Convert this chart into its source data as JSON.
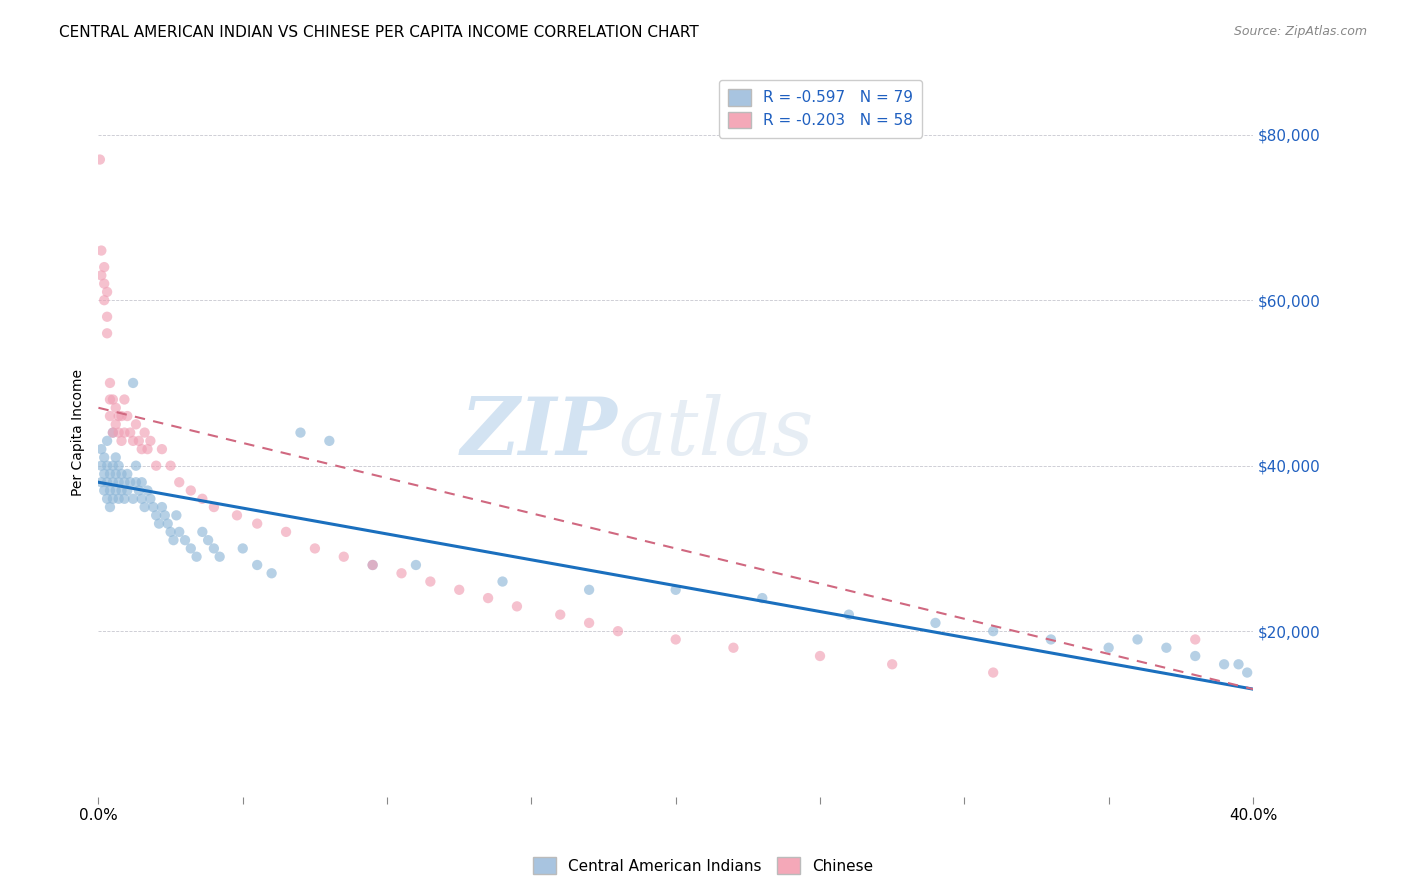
{
  "title": "CENTRAL AMERICAN INDIAN VS CHINESE PER CAPITA INCOME CORRELATION CHART",
  "source": "Source: ZipAtlas.com",
  "ylabel": "Per Capita Income",
  "yticks": [
    0,
    20000,
    40000,
    60000,
    80000
  ],
  "ytick_labels": [
    "",
    "$20,000",
    "$40,000",
    "$60,000",
    "$80,000"
  ],
  "watermark_zip": "ZIP",
  "watermark_atlas": "atlas",
  "legend_entries": [
    {
      "label": "R = -0.597   N = 79",
      "color": "#a8c4e0"
    },
    {
      "label": "R = -0.203   N = 58",
      "color": "#f4a8b8"
    }
  ],
  "legend_bottom": [
    {
      "label": "Central American Indians",
      "color": "#a8c4e0"
    },
    {
      "label": "Chinese",
      "color": "#f4a8b8"
    }
  ],
  "blue_scatter_x": [
    0.001,
    0.001,
    0.001,
    0.002,
    0.002,
    0.002,
    0.003,
    0.003,
    0.003,
    0.003,
    0.004,
    0.004,
    0.004,
    0.005,
    0.005,
    0.005,
    0.005,
    0.006,
    0.006,
    0.006,
    0.007,
    0.007,
    0.007,
    0.008,
    0.008,
    0.009,
    0.009,
    0.01,
    0.01,
    0.011,
    0.012,
    0.012,
    0.013,
    0.013,
    0.014,
    0.015,
    0.015,
    0.016,
    0.017,
    0.018,
    0.019,
    0.02,
    0.021,
    0.022,
    0.023,
    0.024,
    0.025,
    0.026,
    0.027,
    0.028,
    0.03,
    0.032,
    0.034,
    0.036,
    0.038,
    0.04,
    0.042,
    0.05,
    0.055,
    0.06,
    0.07,
    0.08,
    0.095,
    0.11,
    0.14,
    0.17,
    0.2,
    0.23,
    0.26,
    0.29,
    0.31,
    0.33,
    0.35,
    0.36,
    0.37,
    0.38,
    0.39,
    0.395,
    0.398
  ],
  "blue_scatter_y": [
    38000,
    40000,
    42000,
    37000,
    39000,
    41000,
    36000,
    38000,
    40000,
    43000,
    35000,
    37000,
    39000,
    36000,
    38000,
    40000,
    44000,
    37000,
    39000,
    41000,
    36000,
    38000,
    40000,
    37000,
    39000,
    36000,
    38000,
    37000,
    39000,
    38000,
    50000,
    36000,
    38000,
    40000,
    37000,
    36000,
    38000,
    35000,
    37000,
    36000,
    35000,
    34000,
    33000,
    35000,
    34000,
    33000,
    32000,
    31000,
    34000,
    32000,
    31000,
    30000,
    29000,
    32000,
    31000,
    30000,
    29000,
    30000,
    28000,
    27000,
    44000,
    43000,
    28000,
    28000,
    26000,
    25000,
    25000,
    24000,
    22000,
    21000,
    20000,
    19000,
    18000,
    19000,
    18000,
    17000,
    16000,
    16000,
    15000
  ],
  "pink_scatter_x": [
    0.0005,
    0.001,
    0.001,
    0.002,
    0.002,
    0.002,
    0.003,
    0.003,
    0.003,
    0.004,
    0.004,
    0.004,
    0.005,
    0.005,
    0.006,
    0.006,
    0.007,
    0.007,
    0.008,
    0.008,
    0.009,
    0.009,
    0.01,
    0.011,
    0.012,
    0.013,
    0.014,
    0.015,
    0.016,
    0.017,
    0.018,
    0.02,
    0.022,
    0.025,
    0.028,
    0.032,
    0.036,
    0.04,
    0.048,
    0.055,
    0.065,
    0.075,
    0.085,
    0.095,
    0.105,
    0.115,
    0.125,
    0.135,
    0.145,
    0.16,
    0.17,
    0.18,
    0.2,
    0.22,
    0.25,
    0.275,
    0.31,
    0.38
  ],
  "pink_scatter_y": [
    77000,
    66000,
    63000,
    64000,
    62000,
    60000,
    61000,
    58000,
    56000,
    50000,
    48000,
    46000,
    48000,
    44000,
    47000,
    45000,
    46000,
    44000,
    43000,
    46000,
    48000,
    44000,
    46000,
    44000,
    43000,
    45000,
    43000,
    42000,
    44000,
    42000,
    43000,
    40000,
    42000,
    40000,
    38000,
    37000,
    36000,
    35000,
    34000,
    33000,
    32000,
    30000,
    29000,
    28000,
    27000,
    26000,
    25000,
    24000,
    23000,
    22000,
    21000,
    20000,
    19000,
    18000,
    17000,
    16000,
    15000,
    19000
  ],
  "blue_line_x": [
    0.0,
    0.4
  ],
  "blue_line_y": [
    38000,
    13000
  ],
  "pink_line_x": [
    0.0,
    0.4
  ],
  "pink_line_y": [
    47000,
    13000
  ],
  "xlim": [
    0.0,
    0.4
  ],
  "ylim": [
    0,
    88000
  ],
  "xtick_positions": [
    0.0,
    0.05,
    0.1,
    0.15,
    0.2,
    0.25,
    0.3,
    0.35,
    0.4
  ],
  "scatter_size": 55,
  "scatter_alpha": 0.65,
  "blue_color": "#90b8d8",
  "pink_color": "#f0a0b5",
  "blue_line_color": "#1a6fbe",
  "pink_line_color": "#d06880",
  "title_fontsize": 11,
  "axis_label_color": "#2060c0",
  "bg_color": "#ffffff",
  "grid_color": "#c8c8d0"
}
